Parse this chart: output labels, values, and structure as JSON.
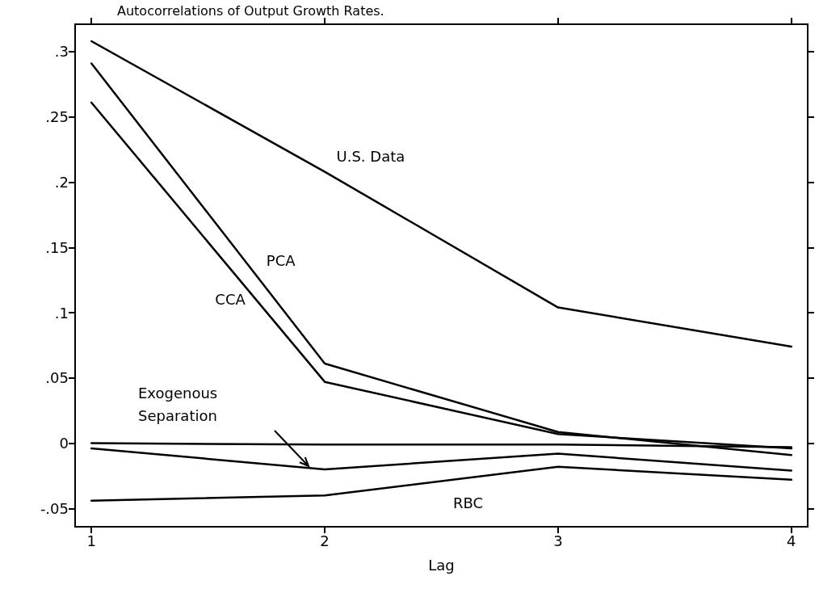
{
  "chart_data": {
    "type": "line",
    "title": "Autocorrelations of Output Growth Rates.",
    "xlabel": "Lag",
    "x": [
      1,
      2,
      3,
      4
    ],
    "series": [
      {
        "name": "U.S. Data",
        "color": "#000000",
        "values": [
          0.308,
          0.208,
          0.104,
          0.074
        ]
      },
      {
        "name": "PCA",
        "color": "#000000",
        "values": [
          0.291,
          0.061,
          0.0086,
          -0.009
        ]
      },
      {
        "name": "CCA",
        "color": "#000000",
        "values": [
          0.261,
          0.047,
          0.007,
          -0.004
        ]
      },
      {
        "color": "#000000",
        "values": [
          0,
          -0.001,
          -0.001,
          -0.003
        ]
      },
      {
        "name": "Exogenous Separation",
        "color": "#000000",
        "values": [
          -0.004,
          -0.02,
          -0.008,
          -0.021
        ]
      },
      {
        "name": "RBC",
        "color": "#000000",
        "values": [
          -0.044,
          -0.04,
          -0.018,
          -0.028
        ]
      }
    ],
    "xlim": [
      0.93,
      4.07
    ],
    "xticks": [
      1,
      2,
      3,
      4
    ],
    "ylim": [
      -0.064,
      0.321
    ],
    "yticks": [
      {
        "value": -0.05,
        "label": "-.05"
      },
      0,
      {
        "value": 0.05,
        "label": ".05"
      },
      {
        "value": 0.1,
        "label": ".1"
      },
      {
        "value": 0.15,
        "label": ".15"
      },
      {
        "value": 0.2,
        "label": ".2"
      },
      {
        "value": 0.25,
        "label": ".25"
      },
      {
        "value": 0.3,
        "label": ".3"
      }
    ],
    "grid": false,
    "legend": false,
    "marker": "none",
    "line_style": "solid"
  }
}
